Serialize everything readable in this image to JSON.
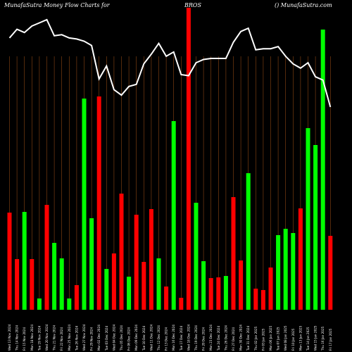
{
  "header": {
    "left": "MunafaSutra  Money Flow  Charts for",
    "symbol": "BROS",
    "right": "() MunafaSutra.com"
  },
  "colors": {
    "background": "#000000",
    "grid": "#8B4513",
    "up": "#00FF00",
    "down": "#FF0000",
    "line": "#FFFFFF"
  },
  "chart_data": {
    "type": "bar",
    "title": "",
    "grid": true,
    "categories": [
      "Fri 17 Jan 2025",
      "Thu 16 Jan 2025",
      "Wed 15 Jan 2025",
      "Tue 14 Jan 2025",
      "Mon 13 Jan 2025",
      "Fri 10 Jan 2025",
      "Wed 08 Jan 2025",
      "Tue 07 Jan 2025",
      "Mon 06 Jan 2025",
      "Fri 03 Jan 2025",
      "Thu 02 Jan 2025",
      "Tue 31 Dec 2024",
      "Mon 30 Dec 2024",
      "Fri 27 Dec 2024",
      "Thu 26 Dec 2024",
      "Tue 24 Dec 2024",
      "Mon 23 Dec 2024",
      "Fri 20 Dec 2024",
      "Thu 19 Dec 2024",
      "Wed 18 Dec 2024",
      "Tue 17 Dec 2024",
      "Mon 16 Dec 2024",
      "Fri 13 Dec 2024",
      "Thu 12 Dec 2024",
      "Wed 11 Dec 2024",
      "Tue 10 Dec 2024",
      "Mon 09 Dec 2024",
      "Fri 06 Dec 2024",
      "Thu 05 Dec 2024",
      "Wed 04 Dec 2024",
      "Tue 03 Dec 2024",
      "Mon 02 Dec 2024",
      "Fri 29 Nov 2024",
      "Wed 27 Nov 2024",
      "Tue 26 Nov 2024",
      "Mon 25 Nov 2024",
      "Fri 22 Nov 2024",
      "Thu 21 Nov 2024",
      "Wed 20 Nov 2024",
      "Tue 19 Nov 2024",
      "Mon 18 Nov 2024",
      "Fri 15 Nov 2024",
      "Thu 14 Nov 2024",
      "Wed 13 Nov 2024"
    ],
    "values": [
      105,
      398,
      234,
      258,
      144,
      109,
      115,
      106,
      60,
      28,
      30,
      194,
      70,
      160,
      48,
      46,
      45,
      69,
      152,
      429,
      17,
      268,
      33,
      73,
      143,
      68,
      135,
      47,
      165,
      80,
      58,
      303,
      130,
      300,
      35,
      16,
      73,
      95,
      149,
      16,
      72,
      139,
      72,
      138
    ],
    "directions": [
      "down",
      "up",
      "up",
      "up",
      "down",
      "up",
      "up",
      "up",
      "down",
      "down",
      "down",
      "up",
      "down",
      "down",
      "up",
      "down",
      "down",
      "up",
      "up",
      "down",
      "down",
      "up",
      "down",
      "up",
      "down",
      "down",
      "down",
      "up",
      "down",
      "down",
      "up",
      "down",
      "up",
      "up",
      "down",
      "up",
      "up",
      "up",
      "down",
      "up",
      "down",
      "up",
      "down",
      "down"
    ],
    "line": [
      188,
      213,
      216,
      229,
      224,
      228,
      235,
      244,
      242,
      242,
      241,
      261,
      258,
      248,
      233,
      233,
      233,
      232,
      229,
      217,
      218,
      239,
      235,
      247,
      237,
      228,
      209,
      207,
      199,
      204,
      226,
      214,
      245,
      249,
      251,
      252,
      255,
      254,
      269,
      266,
      263,
      257,
      260,
      252
    ]
  }
}
